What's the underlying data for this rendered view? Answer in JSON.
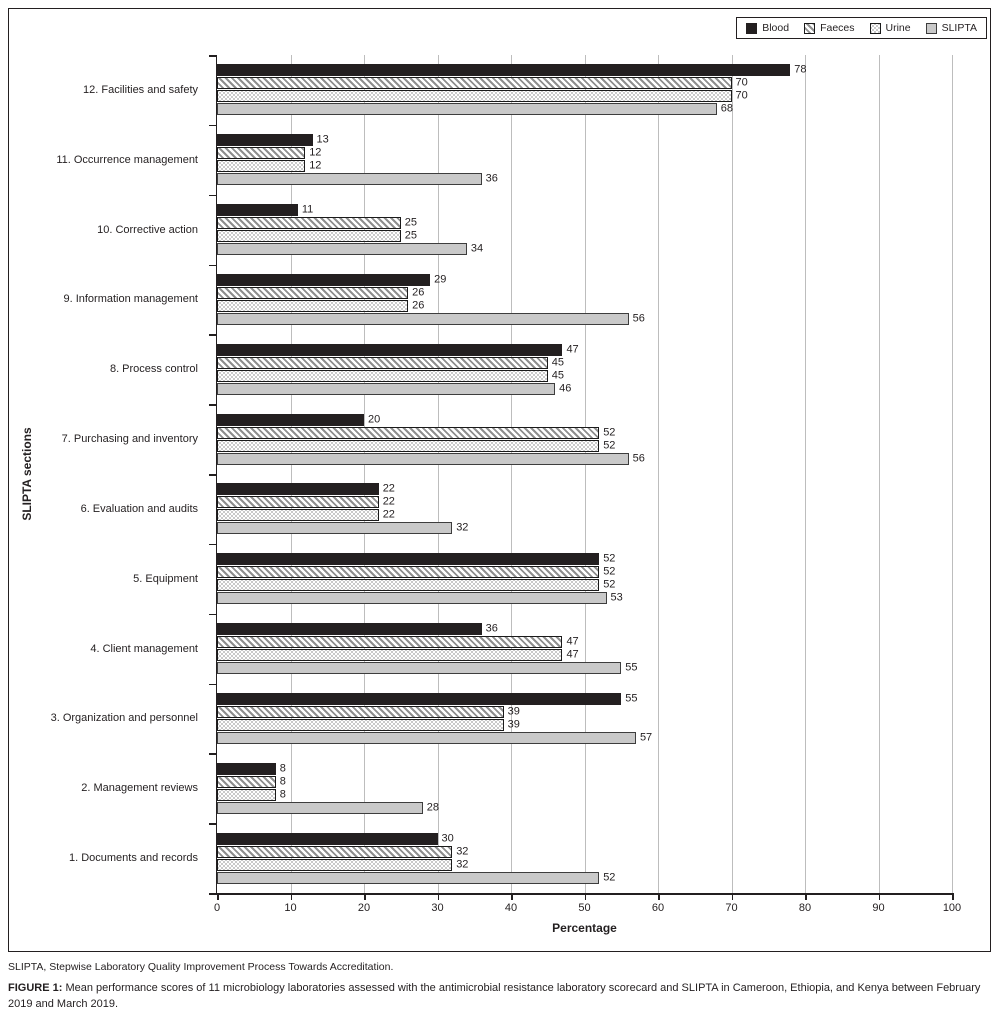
{
  "figure": {
    "footnote": "SLIPTA, Stepwise Laboratory Quality Improvement Process Towards Accreditation.",
    "label": "FIGURE 1:",
    "caption": "Mean performance scores of 11 microbiology laboratories assessed with the antimicrobial resistance laboratory scorecard and SLIPTA in Cameroon, Ethiopia, and Kenya between February 2019 and March 2019."
  },
  "chart_data": {
    "type": "bar",
    "orientation": "horizontal",
    "title": "",
    "xlabel": "Percentage",
    "ylabel": "SLIPTA sections",
    "xlim": [
      0,
      100
    ],
    "xticks": [
      0,
      10,
      20,
      30,
      40,
      50,
      60,
      70,
      80,
      90,
      100
    ],
    "grid": "vertical",
    "legend_position": "top-right",
    "categories": [
      "12. Facilities and safety",
      "11. Occurrence management",
      "10. Corrective action",
      "9. Information management",
      "8. Process control",
      "7. Purchasing and inventory",
      "6. Evaluation and audits",
      "5. Equipment",
      "4. Client management",
      "3. Organization and personnel",
      "2. Management reviews",
      "1. Documents and records"
    ],
    "series": [
      {
        "name": "Blood",
        "pattern": "solid-black",
        "values": [
          78,
          13,
          11,
          29,
          47,
          20,
          22,
          52,
          36,
          55,
          8,
          30
        ]
      },
      {
        "name": "Faeces",
        "pattern": "diagonal-stripes",
        "values": [
          70,
          12,
          25,
          26,
          45,
          52,
          22,
          52,
          47,
          39,
          8,
          32
        ]
      },
      {
        "name": "Urine",
        "pattern": "fine-dots",
        "values": [
          70,
          12,
          25,
          26,
          45,
          52,
          22,
          52,
          47,
          39,
          8,
          32
        ]
      },
      {
        "name": "SLIPTA",
        "pattern": "solid-gray",
        "values": [
          68,
          36,
          34,
          56,
          46,
          56,
          32,
          53,
          55,
          57,
          28,
          52
        ]
      }
    ],
    "colors": {
      "bar_black": "#231f20",
      "bar_gray_fill": "#c9c9c9",
      "stripe_gray": "#8f8f8f",
      "dot_gray": "#9b9b9b",
      "gridline": "#bdbdbd"
    }
  }
}
